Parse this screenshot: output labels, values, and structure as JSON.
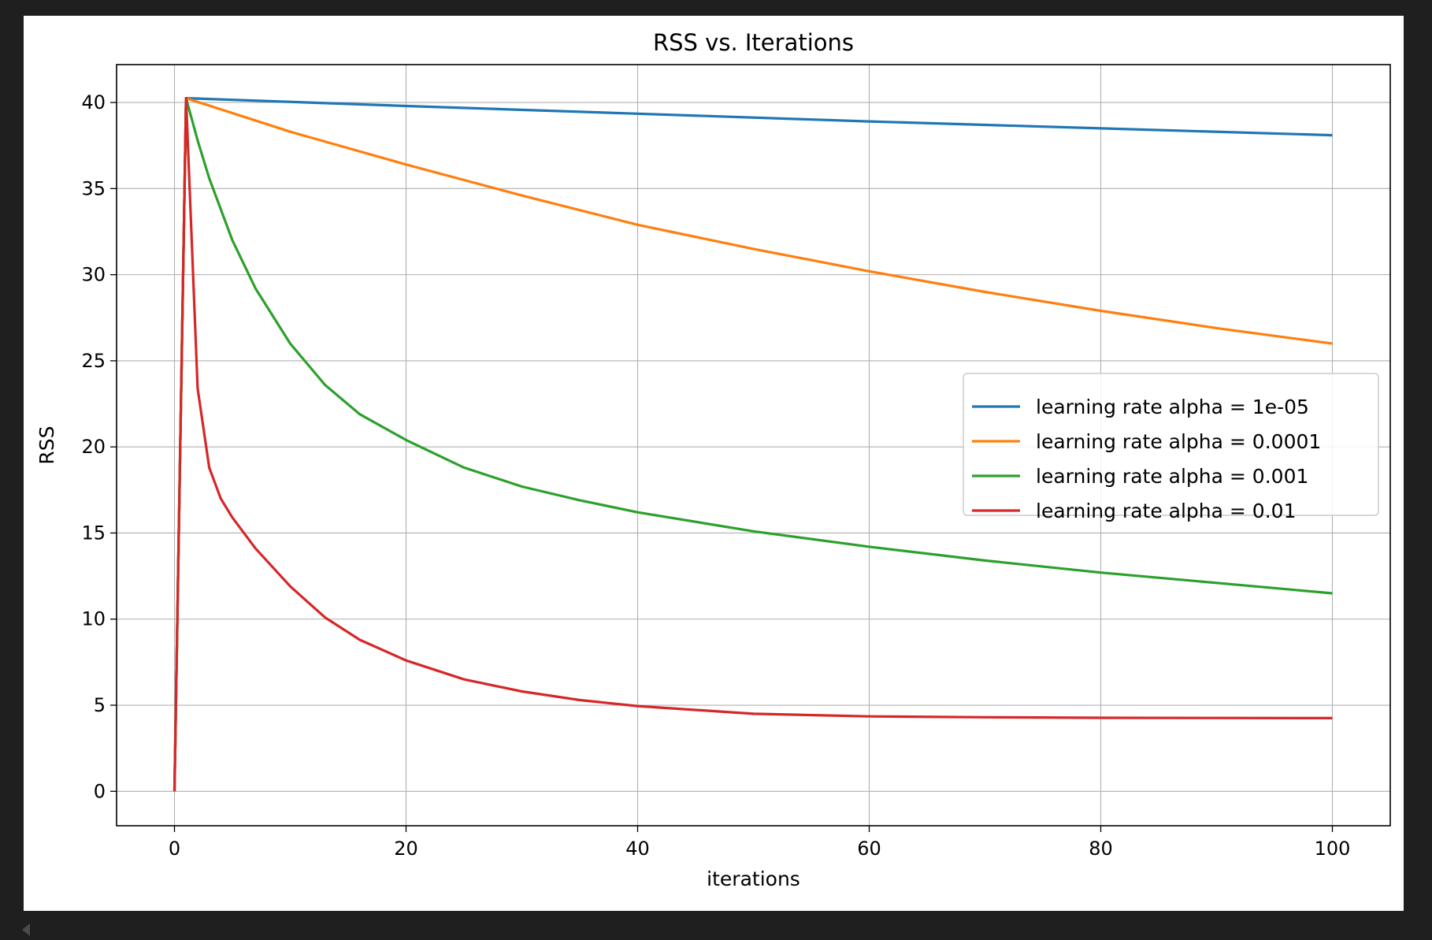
{
  "chart_data": {
    "type": "line",
    "title": "RSS vs. Iterations",
    "xlabel": "iterations",
    "ylabel": "RSS",
    "xlim": [
      -5,
      105
    ],
    "ylim": [
      -2,
      42.2
    ],
    "xticks": [
      0,
      20,
      40,
      60,
      80,
      100
    ],
    "yticks": [
      0,
      5,
      10,
      15,
      20,
      25,
      30,
      35,
      40
    ],
    "grid": true,
    "legend_position": "center-right",
    "series": [
      {
        "name": "learning rate alpha = 1e-05",
        "color": "#1f77b4",
        "points": [
          [
            0,
            0
          ],
          [
            1,
            40.25
          ],
          [
            20,
            39.8
          ],
          [
            40,
            39.35
          ],
          [
            60,
            38.9
          ],
          [
            80,
            38.5
          ],
          [
            100,
            38.1
          ]
        ]
      },
      {
        "name": "learning rate alpha = 0.0001",
        "color": "#ff7f0e",
        "points": [
          [
            0,
            0
          ],
          [
            1,
            40.25
          ],
          [
            10,
            38.3
          ],
          [
            20,
            36.4
          ],
          [
            30,
            34.6
          ],
          [
            40,
            32.9
          ],
          [
            50,
            31.5
          ],
          [
            60,
            30.2
          ],
          [
            70,
            29.0
          ],
          [
            80,
            27.9
          ],
          [
            90,
            26.9
          ],
          [
            100,
            26.0
          ]
        ]
      },
      {
        "name": "learning rate alpha = 0.001",
        "color": "#2ca02c",
        "points": [
          [
            0,
            0
          ],
          [
            1,
            40.25
          ],
          [
            2,
            37.8
          ],
          [
            3,
            35.6
          ],
          [
            5,
            32.0
          ],
          [
            7,
            29.2
          ],
          [
            10,
            26.0
          ],
          [
            13,
            23.6
          ],
          [
            16,
            21.9
          ],
          [
            20,
            20.4
          ],
          [
            25,
            18.8
          ],
          [
            30,
            17.7
          ],
          [
            35,
            16.9
          ],
          [
            40,
            16.2
          ],
          [
            50,
            15.1
          ],
          [
            60,
            14.2
          ],
          [
            70,
            13.4
          ],
          [
            80,
            12.7
          ],
          [
            90,
            12.1
          ],
          [
            100,
            11.5
          ]
        ]
      },
      {
        "name": "learning rate alpha = 0.01",
        "color": "#d62728",
        "points": [
          [
            0,
            0
          ],
          [
            1,
            40.25
          ],
          [
            2,
            23.4
          ],
          [
            3,
            18.8
          ],
          [
            4,
            17.0
          ],
          [
            5,
            15.9
          ],
          [
            7,
            14.1
          ],
          [
            10,
            11.9
          ],
          [
            13,
            10.1
          ],
          [
            16,
            8.8
          ],
          [
            20,
            7.6
          ],
          [
            25,
            6.5
          ],
          [
            30,
            5.8
          ],
          [
            35,
            5.3
          ],
          [
            40,
            4.95
          ],
          [
            50,
            4.5
          ],
          [
            60,
            4.35
          ],
          [
            70,
            4.3
          ],
          [
            80,
            4.27
          ],
          [
            90,
            4.26
          ],
          [
            100,
            4.25
          ]
        ]
      }
    ]
  }
}
